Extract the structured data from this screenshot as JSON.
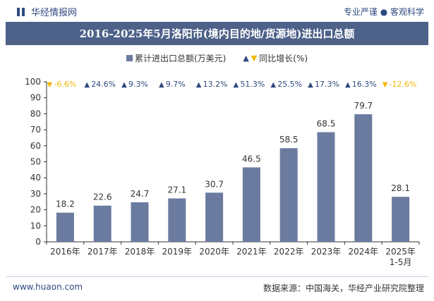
{
  "header": {
    "brand_name": "华经情报网",
    "slogan": "专业严谨 ● 客观科学",
    "logo_icon": "brand-logo-icon"
  },
  "chart_data": {
    "type": "bar",
    "title": "2016-2025年5月洛阳市(境内目的地/货源地)进出口总额",
    "categories": [
      "2016年",
      "2017年",
      "2018年",
      "2019年",
      "2020年",
      "2021年",
      "2022年",
      "2023年",
      "2024年",
      "2025年\n1-5月"
    ],
    "series": [
      {
        "name": "累计进出口总额(万美元)",
        "values": [
          18.2,
          22.6,
          24.7,
          27.1,
          30.7,
          46.5,
          58.5,
          68.5,
          79.7,
          28.1
        ],
        "color": "#6b7ba0"
      }
    ],
    "growth": {
      "name": "同比增长(%)",
      "values": [
        -6.6,
        24.6,
        9.3,
        9.7,
        13.2,
        51.3,
        25.5,
        17.3,
        16.3,
        -12.6
      ],
      "labels": [
        "-6.6%",
        "24.6%",
        "9.3%",
        "9.7%",
        "13.2%",
        "51.3%",
        "25.5%",
        "17.3%",
        "16.3%",
        "-12.6%"
      ],
      "up_color": "#2f4a80",
      "down_color": "#f2b705"
    },
    "ylim": [
      0,
      100
    ],
    "yticks": [
      0,
      10,
      20,
      30,
      40,
      50,
      60,
      70,
      80,
      90,
      100
    ],
    "grid": false,
    "legend_position": "top-center"
  },
  "footer": {
    "website": "www.huaon.com",
    "source": "数据来源：中国海关，华经产业研究院整理"
  }
}
